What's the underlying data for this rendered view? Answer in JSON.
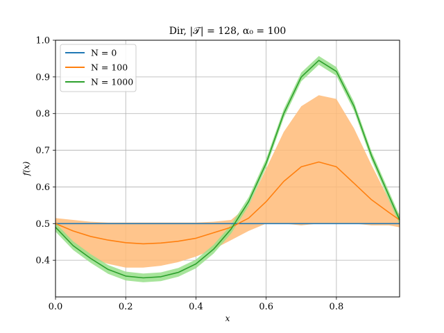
{
  "chart_data": {
    "type": "line",
    "title": "Dir, |𝒯| = 128, α₀ = 100",
    "xlabel": "x",
    "ylabel": "f(x)",
    "xlim": [
      0.0,
      0.98
    ],
    "ylim": [
      0.3,
      1.0
    ],
    "x_ticks": [
      "0.0",
      "0.2",
      "0.4",
      "0.6",
      "0.8"
    ],
    "x_tick_values": [
      0.0,
      0.2,
      0.4,
      0.6,
      0.8
    ],
    "y_ticks": [
      "0.4",
      "0.5",
      "0.6",
      "0.7",
      "0.8",
      "0.9",
      "1.0"
    ],
    "y_tick_values": [
      0.4,
      0.5,
      0.6,
      0.7,
      0.8,
      0.9,
      1.0
    ],
    "grid": true,
    "legend_position": "top-left",
    "x": [
      0.0,
      0.05,
      0.1,
      0.15,
      0.2,
      0.25,
      0.3,
      0.35,
      0.4,
      0.45,
      0.5,
      0.55,
      0.6,
      0.65,
      0.7,
      0.75,
      0.8,
      0.85,
      0.9,
      0.95,
      0.98
    ],
    "series": [
      {
        "name": "N = 0",
        "color": "#1f77b4",
        "values": [
          0.5,
          0.5,
          0.5,
          0.5,
          0.5,
          0.5,
          0.5,
          0.5,
          0.5,
          0.5,
          0.5,
          0.5,
          0.5,
          0.5,
          0.5,
          0.5,
          0.5,
          0.5,
          0.5,
          0.5,
          0.5
        ]
      },
      {
        "name": "N = 100",
        "color": "#ff7f0e",
        "band_color": "#ffbb78",
        "values": [
          0.5,
          0.48,
          0.465,
          0.455,
          0.448,
          0.445,
          0.447,
          0.452,
          0.46,
          0.475,
          0.49,
          0.515,
          0.56,
          0.615,
          0.655,
          0.668,
          0.655,
          0.61,
          0.565,
          0.53,
          0.51
        ],
        "lower": [
          0.49,
          0.44,
          0.405,
          0.39,
          0.38,
          0.38,
          0.385,
          0.395,
          0.41,
          0.43,
          0.455,
          0.48,
          0.5,
          0.5,
          0.495,
          0.5,
          0.5,
          0.5,
          0.495,
          0.495,
          0.49
        ],
        "upper": [
          0.515,
          0.51,
          0.505,
          0.503,
          0.503,
          0.503,
          0.503,
          0.503,
          0.503,
          0.505,
          0.51,
          0.55,
          0.65,
          0.75,
          0.82,
          0.85,
          0.84,
          0.76,
          0.66,
          0.565,
          0.525
        ]
      },
      {
        "name": "N = 1000",
        "color": "#2ca02c",
        "band_color": "#98df8a",
        "values": [
          0.49,
          0.44,
          0.405,
          0.375,
          0.357,
          0.352,
          0.355,
          0.367,
          0.39,
          0.43,
          0.485,
          0.56,
          0.665,
          0.8,
          0.9,
          0.945,
          0.915,
          0.82,
          0.685,
          0.575,
          0.51
        ],
        "band_halfwidth": 0.012
      }
    ]
  }
}
